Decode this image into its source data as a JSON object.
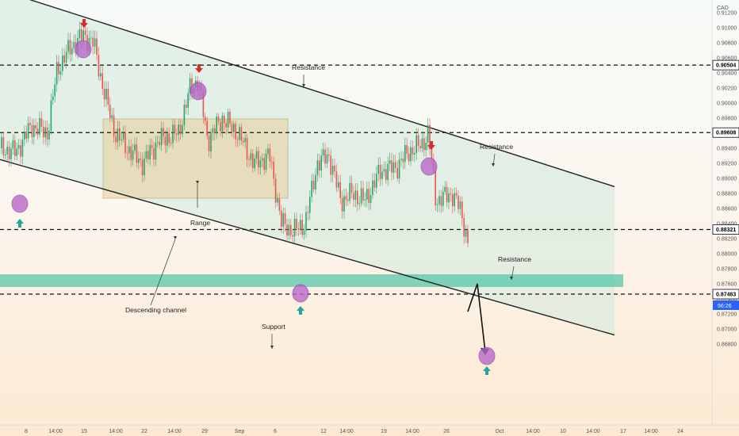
{
  "chart_data": {
    "type": "candlestick",
    "currency": "CAD",
    "y_ticks": [
      "0.91200",
      "0.91000",
      "0.90800",
      "0.90600",
      "0.90400",
      "0.90200",
      "0.90000",
      "0.89800",
      "0.89600",
      "0.89400",
      "0.89200",
      "0.89000",
      "0.88800",
      "0.88600",
      "0.88400",
      "0.88200",
      "0.88000",
      "0.87800",
      "0.87600",
      "0.87400",
      "0.87200",
      "0.87000",
      "0.86800"
    ],
    "x_ticks": [
      "8",
      "14:00",
      "15",
      "14:00",
      "22",
      "14:00",
      "29",
      "Sep",
      "6",
      "12",
      "14:00",
      "19",
      "14:00",
      "26",
      "Oct",
      "14:00",
      "10",
      "14:00",
      "17",
      "14:00",
      "24"
    ],
    "price_tags": [
      {
        "label": "0.90504",
        "value": 0.90504
      },
      {
        "label": "0.89608",
        "value": 0.89608
      },
      {
        "label": "0.88321",
        "value": 0.88321
      },
      {
        "label": "0.87463",
        "value": 0.87463
      }
    ],
    "countdown_tag": "56:26",
    "annotations": {
      "resistance_1": "Resistance",
      "resistance_2": "Resistance",
      "resistance_3": "Resistance",
      "range": "Range",
      "descending_channel": "Descending channel",
      "support": "Support"
    },
    "channel_upper": {
      "start": 0.915,
      "end": 0.8889
    },
    "channel_lower": {
      "start": 0.8925,
      "end": 0.8692
    },
    "colors": {
      "up": "#22a86a",
      "down": "#ef5350",
      "channel_fill": "#cfe9dd",
      "range_fill": "#e8c98a",
      "support_zone": "#4fc3a6",
      "marker": "#ba68c8",
      "arrow_down": "#d32f2f",
      "arrow_up": "#26a69a"
    }
  }
}
